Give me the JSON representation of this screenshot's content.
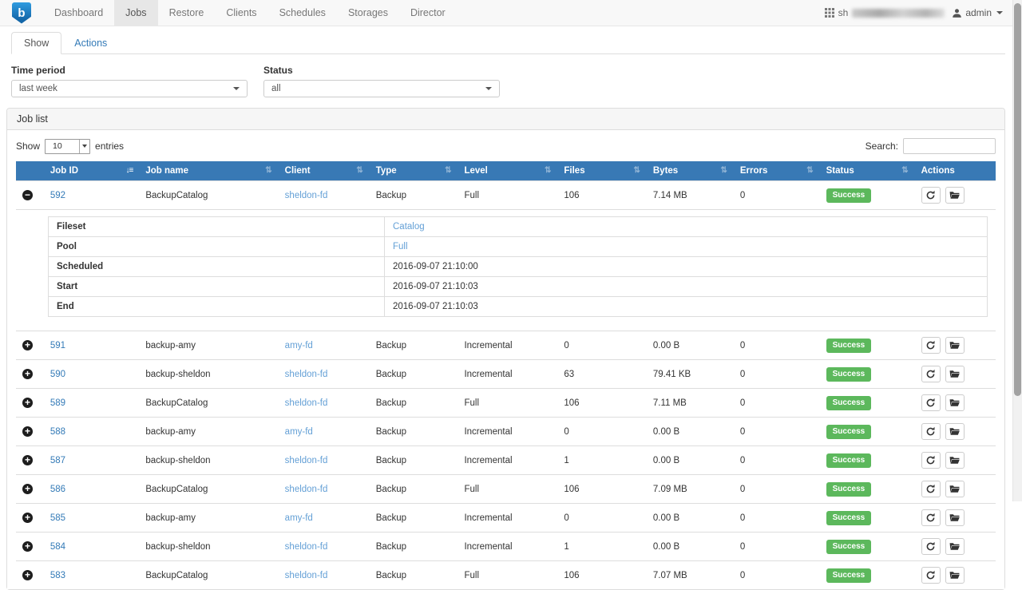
{
  "colors": {
    "header_blue": "#3879b5",
    "success_green": "#5cb85c",
    "link_blue": "#337ab7",
    "client_link_blue": "#64a0d6",
    "navbar_bg": "#f8f8f8"
  },
  "navbar": {
    "brand": "b",
    "items": [
      {
        "label": "Dashboard",
        "active": false
      },
      {
        "label": "Jobs",
        "active": true
      },
      {
        "label": "Restore",
        "active": false
      },
      {
        "label": "Clients",
        "active": false
      },
      {
        "label": "Schedules",
        "active": false
      },
      {
        "label": "Storages",
        "active": false
      },
      {
        "label": "Director",
        "active": false
      }
    ],
    "hostname_visible": "sh",
    "user": "admin"
  },
  "tabs": [
    {
      "label": "Show",
      "active": true
    },
    {
      "label": "Actions",
      "active": false
    }
  ],
  "filters": {
    "time_period": {
      "label": "Time period",
      "value": "last week"
    },
    "status": {
      "label": "Status",
      "value": "all"
    }
  },
  "panel": {
    "title": "Job list"
  },
  "controls": {
    "show_label": "Show",
    "entries_value": "10",
    "entries_label": "entries",
    "search_label": "Search:",
    "search_value": ""
  },
  "table": {
    "columns": [
      {
        "label": "",
        "sort": null
      },
      {
        "label": "Job ID",
        "sort": "desc"
      },
      {
        "label": "Job name",
        "sort": "both"
      },
      {
        "label": "Client",
        "sort": "both"
      },
      {
        "label": "Type",
        "sort": "both"
      },
      {
        "label": "Level",
        "sort": "both"
      },
      {
        "label": "Files",
        "sort": "both"
      },
      {
        "label": "Bytes",
        "sort": "both"
      },
      {
        "label": "Errors",
        "sort": "both"
      },
      {
        "label": "Status",
        "sort": "both"
      },
      {
        "label": "Actions",
        "sort": null
      }
    ],
    "rows": [
      {
        "id": "592",
        "name": "BackupCatalog",
        "client": "sheldon-fd",
        "type": "Backup",
        "level": "Full",
        "files": "106",
        "bytes": "7.14 MB",
        "errors": "0",
        "status": "Success",
        "expanded": true
      },
      {
        "id": "591",
        "name": "backup-amy",
        "client": "amy-fd",
        "type": "Backup",
        "level": "Incremental",
        "files": "0",
        "bytes": "0.00 B",
        "errors": "0",
        "status": "Success",
        "expanded": false
      },
      {
        "id": "590",
        "name": "backup-sheldon",
        "client": "sheldon-fd",
        "type": "Backup",
        "level": "Incremental",
        "files": "63",
        "bytes": "79.41 KB",
        "errors": "0",
        "status": "Success",
        "expanded": false
      },
      {
        "id": "589",
        "name": "BackupCatalog",
        "client": "sheldon-fd",
        "type": "Backup",
        "level": "Full",
        "files": "106",
        "bytes": "7.11 MB",
        "errors": "0",
        "status": "Success",
        "expanded": false
      },
      {
        "id": "588",
        "name": "backup-amy",
        "client": "amy-fd",
        "type": "Backup",
        "level": "Incremental",
        "files": "0",
        "bytes": "0.00 B",
        "errors": "0",
        "status": "Success",
        "expanded": false
      },
      {
        "id": "587",
        "name": "backup-sheldon",
        "client": "sheldon-fd",
        "type": "Backup",
        "level": "Incremental",
        "files": "1",
        "bytes": "0.00 B",
        "errors": "0",
        "status": "Success",
        "expanded": false
      },
      {
        "id": "586",
        "name": "BackupCatalog",
        "client": "sheldon-fd",
        "type": "Backup",
        "level": "Full",
        "files": "106",
        "bytes": "7.09 MB",
        "errors": "0",
        "status": "Success",
        "expanded": false
      },
      {
        "id": "585",
        "name": "backup-amy",
        "client": "amy-fd",
        "type": "Backup",
        "level": "Incremental",
        "files": "0",
        "bytes": "0.00 B",
        "errors": "0",
        "status": "Success",
        "expanded": false
      },
      {
        "id": "584",
        "name": "backup-sheldon",
        "client": "sheldon-fd",
        "type": "Backup",
        "level": "Incremental",
        "files": "1",
        "bytes": "0.00 B",
        "errors": "0",
        "status": "Success",
        "expanded": false
      },
      {
        "id": "583",
        "name": "BackupCatalog",
        "client": "sheldon-fd",
        "type": "Backup",
        "level": "Full",
        "files": "106",
        "bytes": "7.07 MB",
        "errors": "0",
        "status": "Success",
        "expanded": false
      }
    ],
    "detail": {
      "rows": [
        {
          "label": "Fileset",
          "value": "Catalog",
          "link": true
        },
        {
          "label": "Pool",
          "value": "Full",
          "link": true
        },
        {
          "label": "Scheduled",
          "value": "2016-09-07 21:10:00",
          "link": false
        },
        {
          "label": "Start",
          "value": "2016-09-07 21:10:03",
          "link": false
        },
        {
          "label": "End",
          "value": "2016-09-07 21:10:03",
          "link": false
        }
      ]
    }
  },
  "icons": {
    "expand": "plus-circle-icon",
    "collapse": "minus-circle-icon",
    "rerun": "circular-arrow-icon",
    "joblog": "folder-icon",
    "user": "person-icon",
    "apps": "grid-icon",
    "sort_active": "sort-desc-icon",
    "sort_neutral": "sort-both-icon"
  }
}
